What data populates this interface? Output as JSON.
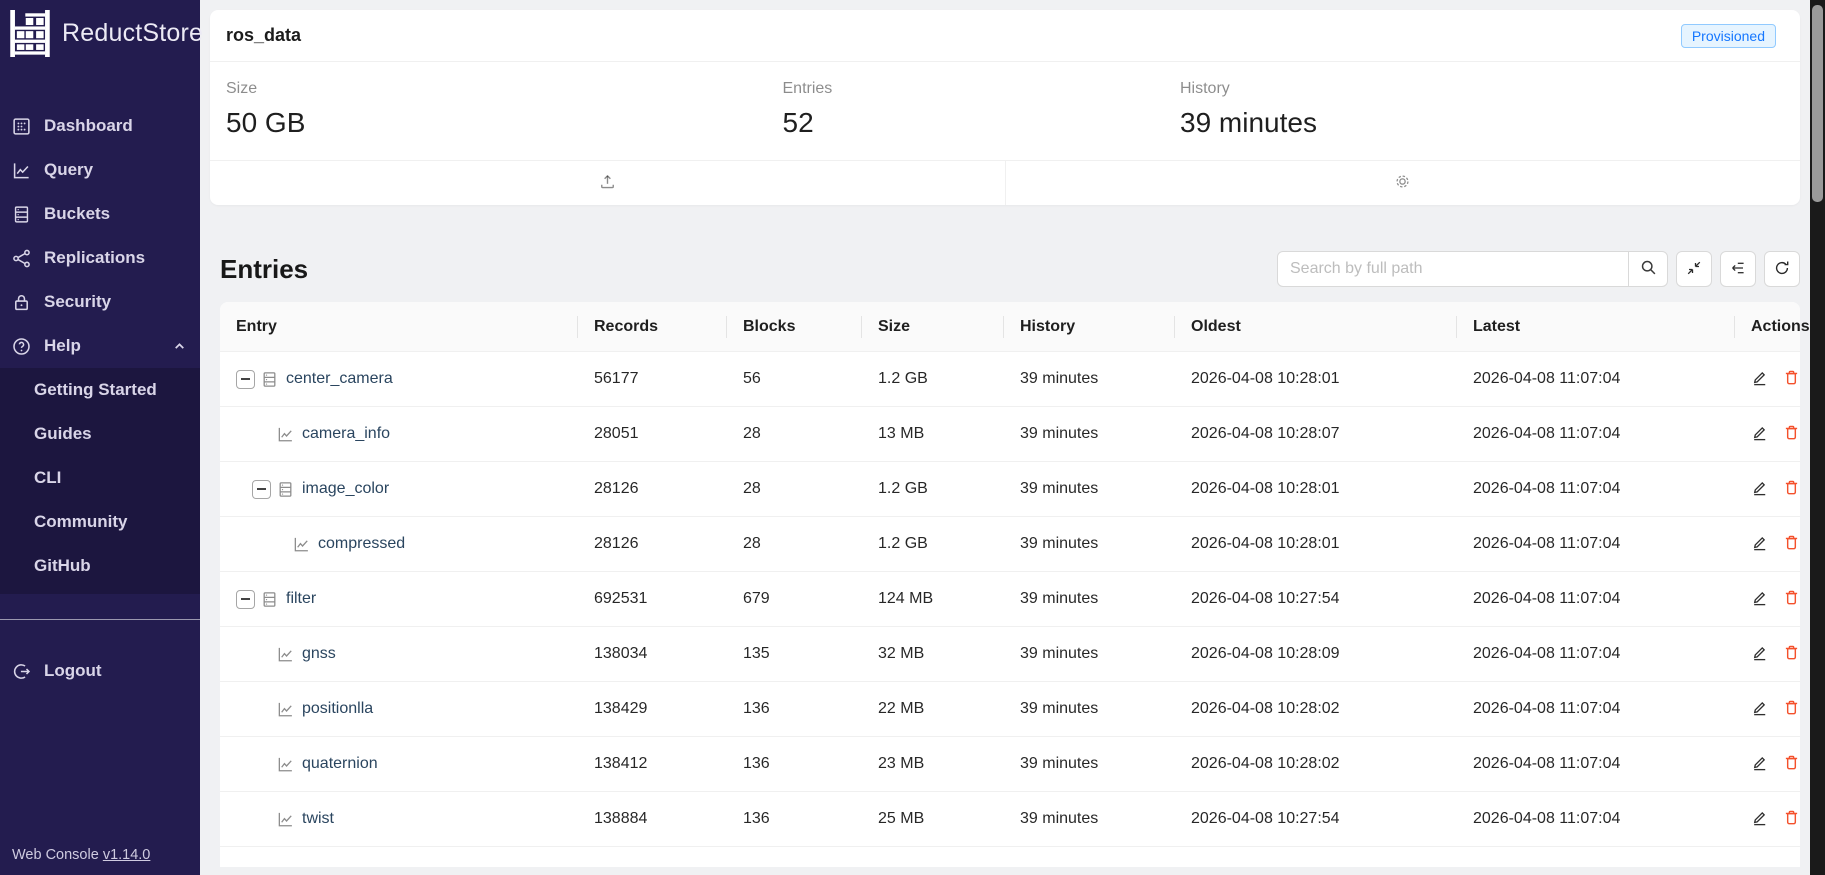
{
  "sidebar": {
    "logo_text": "ReductStore",
    "menu": [
      {
        "label": "Dashboard",
        "icon": "dashboard-icon"
      },
      {
        "label": "Query",
        "icon": "query-icon"
      },
      {
        "label": "Buckets",
        "icon": "buckets-icon"
      },
      {
        "label": "Replications",
        "icon": "replications-icon"
      },
      {
        "label": "Security",
        "icon": "security-icon"
      },
      {
        "label": "Help",
        "icon": "help-icon",
        "expanded": true
      }
    ],
    "help_submenu": [
      "Getting Started",
      "Guides",
      "CLI",
      "Community",
      "GitHub"
    ],
    "logout_label": "Logout",
    "footer_text": "Web Console",
    "version": "v1.14.0"
  },
  "bucket_card": {
    "title": "ros_data",
    "badge": "Provisioned",
    "stats": [
      {
        "label": "Size",
        "value": "50 GB"
      },
      {
        "label": "Entries",
        "value": "52"
      },
      {
        "label": "History",
        "value": "39 minutes"
      }
    ],
    "action_icons": [
      "upload-icon",
      "gear-icon"
    ]
  },
  "entries_section": {
    "title": "Entries",
    "search_placeholder": "Search by full path",
    "toolbar_icons": [
      "search-icon",
      "shrink-icon",
      "outdent-icon",
      "reload-icon"
    ],
    "columns": [
      "Entry",
      "Records",
      "Blocks",
      "Size",
      "History",
      "Oldest",
      "Latest",
      "Actions"
    ],
    "rows": [
      {
        "name": "center_camera",
        "level": 1,
        "type": "branch",
        "icon": "database-icon",
        "records": "56177",
        "blocks": "56",
        "size": "1.2 GB",
        "history": "39 minutes",
        "oldest": "2026-04-08 10:28:01",
        "latest": "2026-04-08 11:07:04"
      },
      {
        "name": "camera_info",
        "level": 2,
        "type": "leaf",
        "icon": "chart-icon",
        "records": "28051",
        "blocks": "28",
        "size": "13 MB",
        "history": "39 minutes",
        "oldest": "2026-04-08 10:28:07",
        "latest": "2026-04-08 11:07:04"
      },
      {
        "name": "image_color",
        "level": 2,
        "type": "branch",
        "icon": "database-icon",
        "records": "28126",
        "blocks": "28",
        "size": "1.2 GB",
        "history": "39 minutes",
        "oldest": "2026-04-08 10:28:01",
        "latest": "2026-04-08 11:07:04"
      },
      {
        "name": "compressed",
        "level": 3,
        "type": "leaf",
        "icon": "chart-icon",
        "records": "28126",
        "blocks": "28",
        "size": "1.2 GB",
        "history": "39 minutes",
        "oldest": "2026-04-08 10:28:01",
        "latest": "2026-04-08 11:07:04"
      },
      {
        "name": "filter",
        "level": 1,
        "type": "branch",
        "icon": "database-icon",
        "records": "692531",
        "blocks": "679",
        "size": "124 MB",
        "history": "39 minutes",
        "oldest": "2026-04-08 10:27:54",
        "latest": "2026-04-08 11:07:04"
      },
      {
        "name": "gnss",
        "level": 2,
        "type": "leaf",
        "icon": "chart-icon",
        "records": "138034",
        "blocks": "135",
        "size": "32 MB",
        "history": "39 minutes",
        "oldest": "2026-04-08 10:28:09",
        "latest": "2026-04-08 11:07:04"
      },
      {
        "name": "positionlla",
        "level": 2,
        "type": "leaf",
        "icon": "chart-icon",
        "records": "138429",
        "blocks": "136",
        "size": "22 MB",
        "history": "39 minutes",
        "oldest": "2026-04-08 10:28:02",
        "latest": "2026-04-08 11:07:04"
      },
      {
        "name": "quaternion",
        "level": 2,
        "type": "leaf",
        "icon": "chart-icon",
        "records": "138412",
        "blocks": "136",
        "size": "23 MB",
        "history": "39 minutes",
        "oldest": "2026-04-08 10:28:02",
        "latest": "2026-04-08 11:07:04"
      },
      {
        "name": "twist",
        "level": 2,
        "type": "leaf",
        "icon": "chart-icon",
        "records": "138884",
        "blocks": "136",
        "size": "25 MB",
        "history": "39 minutes",
        "oldest": "2026-04-08 10:27:54",
        "latest": "2026-04-08 11:07:04"
      }
    ]
  },
  "colors": {
    "sidebar_bg": "#231c4f",
    "submenu_bg": "#1c163f",
    "page_bg": "#f0f1f3",
    "badge_bg": "#e6f4ff",
    "badge_border": "#91caff",
    "badge_text": "#1677ff",
    "entry_link": "#2a455f",
    "delete_icon": "#f4512c"
  }
}
